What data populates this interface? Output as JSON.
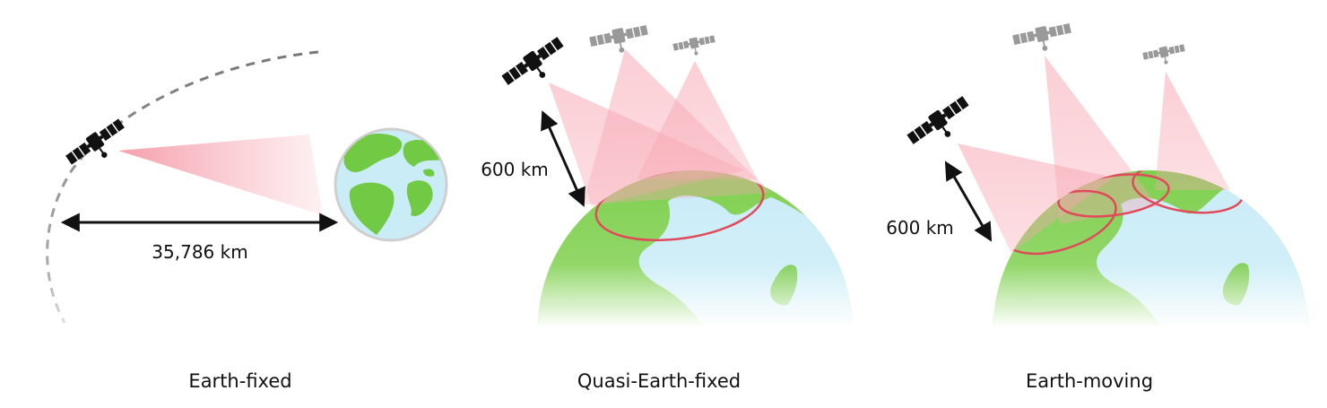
{
  "panels": [
    {
      "caption": "Earth-fixed",
      "distance_label": "35,786 km"
    },
    {
      "caption": "Quasi-Earth-fixed",
      "distance_label": "600 km"
    },
    {
      "caption": "Earth-moving",
      "distance_label": "600 km"
    }
  ],
  "colors": {
    "beam": "#f7a6b2",
    "footprint": "#e04a5a",
    "land": "#72c944",
    "ocean": "#c9ecf7",
    "satellite_primary": "#111111",
    "satellite_secondary": "#9a9a9a",
    "orbit": "#8a8a8a"
  },
  "icons": [
    "satellite-icon",
    "globe-icon",
    "double-arrow-icon"
  ]
}
